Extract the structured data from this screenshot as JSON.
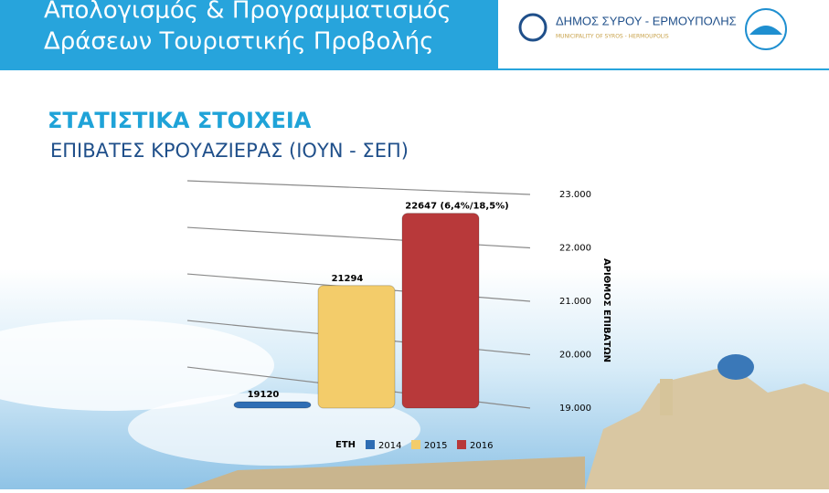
{
  "header": {
    "title_lines": [
      "Απολογισμός & Προγραμματισμός",
      "Δράσεων Τουριστικής Προβολής"
    ],
    "logo_name": "ΔΗΜΟΣ ΣΥΡΟΥ - ΕΡΜΟΥΠΟΛΗΣ",
    "logo_subtitle": "MUNICIPALITY OF SYROS - HERMOUPOLIS"
  },
  "chart_data": {
    "type": "bar",
    "title": "ΣΤΑΤΙΣΤΙΚΑ ΣΤΟΙΧΕΙΑ",
    "subtitle": "ΕΠΙΒΑΤΕΣ ΚΡΟΥΑΖΙΕΡΑΣ (ΙΟΥΝ - ΣΕΠ)",
    "y_label": "ΑΡΙΘΜΟΣ ΕΠΙΒΑΤΩΝ",
    "legend_title": "ΕΤΗ",
    "categories": [
      null
    ],
    "series": [
      {
        "name": "2014",
        "color": "#2e6db4",
        "values": [
          19120
        ]
      },
      {
        "name": "2015",
        "color": "#f3cc6a",
        "values": [
          21294
        ]
      },
      {
        "name": "2016",
        "color": "#b8393a",
        "values": [
          22647
        ],
        "value_labels": [
          "22647 (6,4%/18,5%)"
        ]
      }
    ],
    "ylim": [
      19000,
      23000
    ],
    "yticks": [
      {
        "value": 19000,
        "label": "19.000"
      },
      {
        "value": 20000,
        "label": "20.000"
      },
      {
        "value": 21000,
        "label": "21.000"
      },
      {
        "value": 22000,
        "label": "22.000"
      },
      {
        "value": 23000,
        "label": "23.000"
      }
    ],
    "grid": true
  }
}
